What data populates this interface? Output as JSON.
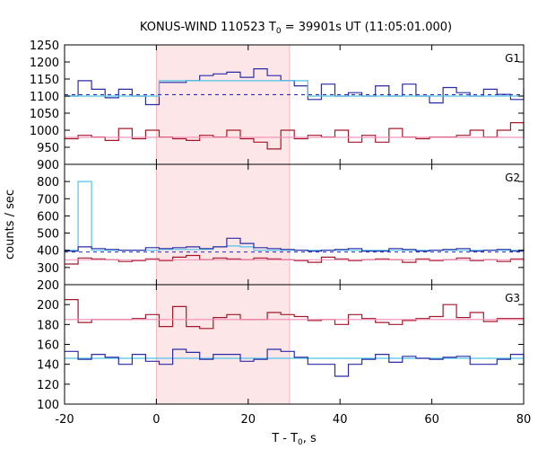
{
  "chart_data": {
    "type": "line",
    "title_prefix": "KONUS-WIND 110523 T",
    "title_sub": "0",
    "title_suffix": " = 39901s UT (11:05:01.000)",
    "xlabel_prefix": "T - T",
    "xlabel_sub": "0",
    "xlabel_suffix": ", s",
    "ylabel": "counts / sec",
    "xlim": [
      -20,
      80
    ],
    "x_ticks": [
      "-20",
      "0",
      "20",
      "40",
      "60",
      "80"
    ],
    "highlight_interval": [
      0,
      29
    ],
    "colors": {
      "shade": "#fde6e8",
      "blue": "#2b2ba6",
      "cyan": "#4fc4e8",
      "red": "#a3192b",
      "pink": "#f58ab4"
    },
    "panels": [
      {
        "tag": "G1",
        "ylim": [
          900,
          1250
        ],
        "y_ticks": [
          900,
          950,
          1000,
          1050,
          1100,
          1150,
          1200,
          1250
        ],
        "series": [
          {
            "kind": "step",
            "color": "blue",
            "x0": -20,
            "dx": 2.944,
            "values": [
              1100,
              1145,
              1120,
              1095,
              1120,
              1100,
              1075,
              1140,
              1140,
              1145,
              1160,
              1165,
              1170,
              1155,
              1180,
              1160,
              1145,
              1130,
              1090,
              1135,
              1100,
              1110,
              1100,
              1130,
              1100,
              1135,
              1100,
              1080,
              1125,
              1110,
              1100,
              1120,
              1105,
              1090,
              1110,
              1115,
              1105,
              1120,
              1112,
              1095,
              1115
            ]
          },
          {
            "kind": "step",
            "color": "cyan",
            "x0": -20,
            "dx": 2.944,
            "values": [
              1100,
              1100,
              1100,
              1100,
              1100,
              1100,
              1100,
              1145,
              1145,
              1145,
              1145,
              1145,
              1145,
              1145,
              1145,
              1145,
              1145,
              1145,
              1100,
              1100,
              1100,
              1100,
              1100,
              1100,
              1100,
              1100,
              1100,
              1100,
              1100,
              1100,
              1100,
              1100,
              1100,
              1100,
              1100,
              1100,
              1100,
              1100,
              1100,
              1100,
              1100
            ]
          },
          {
            "kind": "hline",
            "color": "blue",
            "dashed": true,
            "value": 1104
          },
          {
            "kind": "step",
            "color": "red",
            "x0": -20,
            "dx": 2.944,
            "values": [
              975,
              985,
              980,
              970,
              1005,
              975,
              1000,
              980,
              975,
              970,
              985,
              980,
              1000,
              975,
              965,
              945,
              1000,
              975,
              985,
              980,
              1000,
              965,
              985,
              965,
              1005,
              980,
              975,
              980,
              980,
              985,
              1000,
              980,
              1000,
              1022,
              1003,
              975,
              975,
              980,
              990,
              975,
              980
            ]
          },
          {
            "kind": "hline",
            "color": "pink",
            "dashed": false,
            "value": 979
          }
        ]
      },
      {
        "tag": "G2",
        "ylim": [
          200,
          900
        ],
        "y_ticks": [
          200,
          300,
          400,
          500,
          600,
          700,
          800
        ],
        "series": [
          {
            "kind": "step",
            "color": "cyan",
            "x0": -20,
            "dx": 2.944,
            "values": [
              400,
              800,
              400,
              400,
              400,
              400,
              400,
              405,
              405,
              405,
              405,
              420,
              425,
              420,
              400,
              400,
              400,
              400,
              400,
              400,
              400,
              400,
              400,
              400,
              400,
              400,
              400,
              400,
              400,
              400,
              400,
              400,
              400,
              400,
              400,
              400,
              400,
              400,
              400,
              400,
              400
            ]
          },
          {
            "kind": "step",
            "color": "blue",
            "x0": -20,
            "dx": 2.944,
            "values": [
              395,
              420,
              410,
              405,
              400,
              400,
              415,
              410,
              415,
              420,
              410,
              420,
              470,
              440,
              415,
              410,
              405,
              400,
              395,
              400,
              405,
              410,
              395,
              395,
              410,
              405,
              395,
              400,
              405,
              410,
              395,
              400,
              405,
              395,
              405,
              410,
              405,
              395,
              410,
              400,
              410
            ]
          },
          {
            "kind": "hline",
            "color": "blue",
            "dashed": true,
            "value": 390
          },
          {
            "kind": "step",
            "color": "red",
            "x0": -20,
            "dx": 2.944,
            "values": [
              320,
              355,
              350,
              345,
              335,
              340,
              350,
              340,
              360,
              370,
              345,
              355,
              350,
              345,
              355,
              350,
              345,
              340,
              330,
              360,
              350,
              340,
              345,
              350,
              345,
              330,
              350,
              340,
              345,
              355,
              340,
              345,
              335,
              350,
              345,
              350,
              340,
              340,
              350,
              345,
              340
            ]
          },
          {
            "kind": "hline",
            "color": "pink",
            "dashed": false,
            "value": 345
          }
        ]
      },
      {
        "tag": "G3",
        "ylim": [
          100,
          220
        ],
        "y_ticks": [
          100,
          120,
          140,
          160,
          180,
          200
        ],
        "series": [
          {
            "kind": "step",
            "color": "red",
            "x0": -20,
            "dx": 2.944,
            "values": [
              205,
              182,
              185,
              185,
              185,
              186,
              190,
              178,
              198,
              178,
              176,
              187,
              190,
              185,
              185,
              192,
              190,
              188,
              184,
              185,
              180,
              190,
              186,
              182,
              180,
              184,
              186,
              188,
              200,
              187,
              192,
              183,
              186,
              186,
              185,
              187,
              184,
              182,
              180,
              186,
              182
            ]
          },
          {
            "kind": "hline",
            "color": "pink",
            "dashed": false,
            "value": 185
          },
          {
            "kind": "step",
            "color": "cyan",
            "x0": -20,
            "dx": 2.944,
            "values": [
              146,
              146,
              146,
              146,
              146,
              146,
              146,
              146,
              146,
              146,
              146,
              146,
              146,
              146,
              146,
              146,
              146,
              146,
              146,
              146,
              146,
              146,
              146,
              146,
              146,
              146,
              146,
              146,
              146,
              146,
              146,
              146,
              146,
              146,
              146,
              146,
              146,
              146,
              146,
              146,
              146
            ]
          },
          {
            "kind": "step",
            "color": "blue",
            "x0": -20,
            "dx": 2.944,
            "values": [
              153,
              145,
              150,
              147,
              140,
              150,
              143,
              140,
              155,
              152,
              145,
              150,
              150,
              143,
              145,
              155,
              153,
              147,
              140,
              140,
              128,
              140,
              145,
              150,
              142,
              148,
              146,
              145,
              147,
              148,
              140,
              140,
              145,
              150,
              148,
              145,
              140,
              145,
              144,
              140,
              143
            ]
          }
        ]
      }
    ]
  }
}
